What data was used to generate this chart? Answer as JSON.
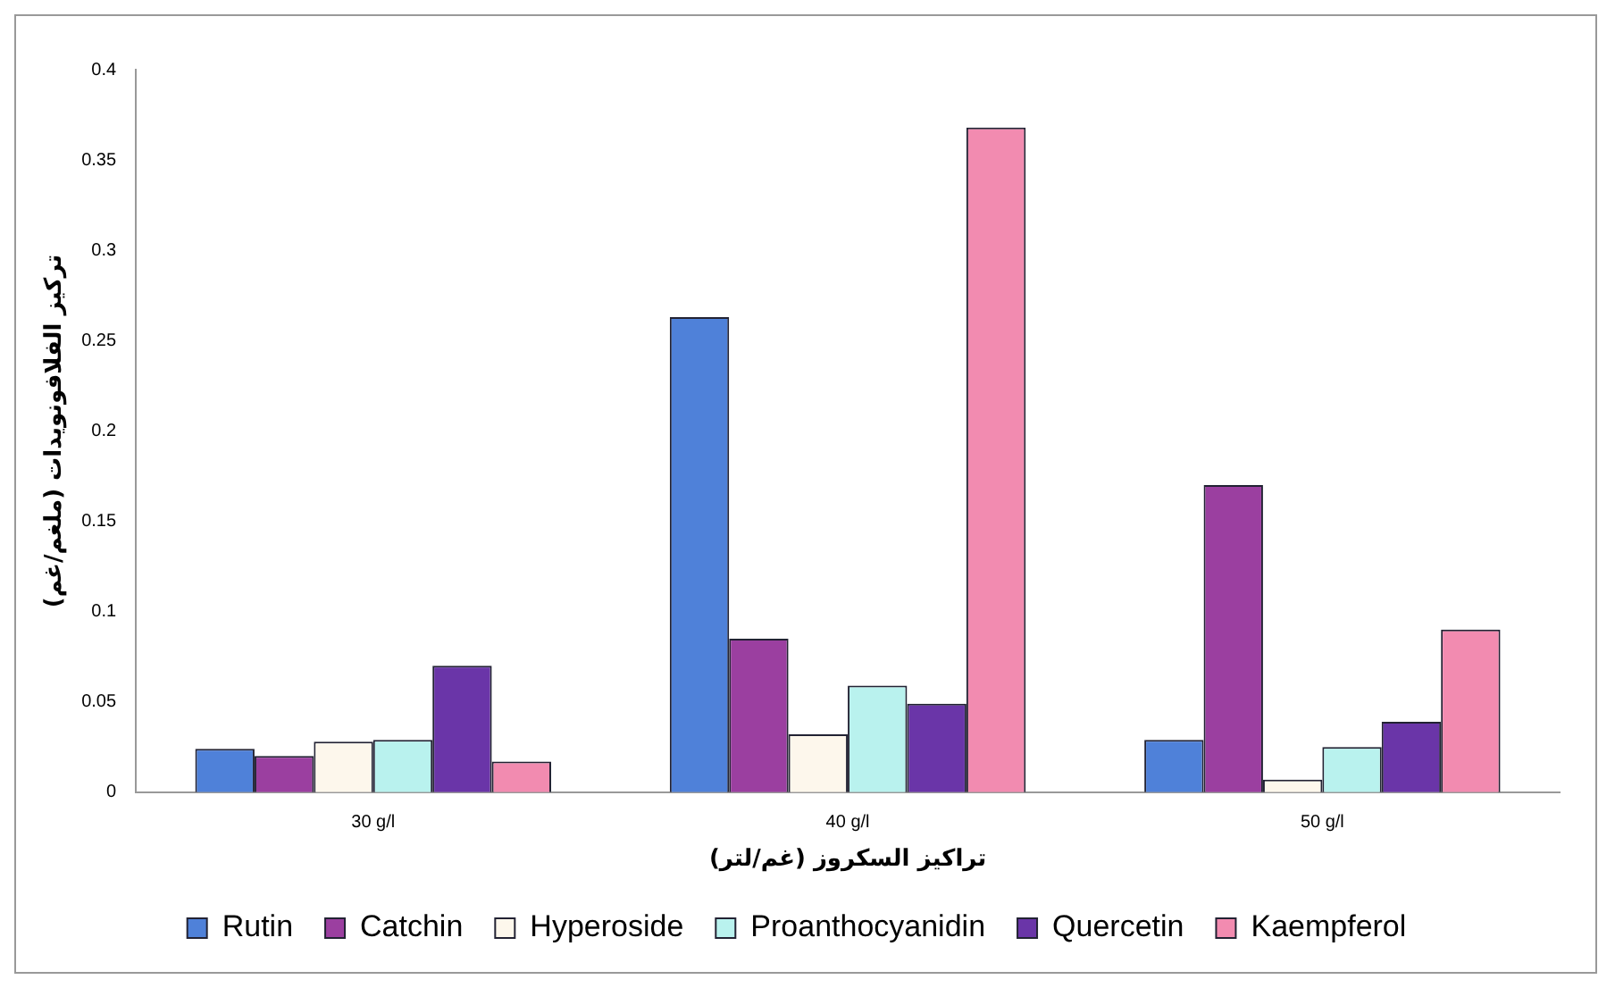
{
  "chart_data": {
    "type": "bar",
    "xlabel": "تراكيز السكروز (غم/لتر)",
    "ylabel": "تركيز الفلافونويدات (ملغم/غم)",
    "categories": [
      "30 g/l",
      "40 g/l",
      "50 g/l"
    ],
    "series": [
      {
        "name": "Rutin",
        "color": "#4f81d9",
        "values": [
          0.024,
          0.263,
          0.029
        ]
      },
      {
        "name": "Catchin",
        "color": "#9b3fa0",
        "values": [
          0.02,
          0.085,
          0.17
        ]
      },
      {
        "name": "Hyperoside",
        "color": "#fdf7ec",
        "values": [
          0.028,
          0.032,
          0.007
        ]
      },
      {
        "name": "Proanthocyanidin",
        "color": "#b9f2ee",
        "values": [
          0.029,
          0.059,
          0.025
        ]
      },
      {
        "name": "Quercetin",
        "color": "#6a35a8",
        "values": [
          0.07,
          0.049,
          0.039
        ]
      },
      {
        "name": "Kaempferol",
        "color": "#f28bb0",
        "values": [
          0.017,
          0.368,
          0.09
        ]
      }
    ],
    "ylim": [
      0,
      0.4
    ],
    "yticks": [
      0,
      0.05,
      0.1,
      0.15,
      0.2,
      0.25,
      0.3,
      0.35,
      0.4
    ],
    "grid": false,
    "legend": "bottom"
  }
}
